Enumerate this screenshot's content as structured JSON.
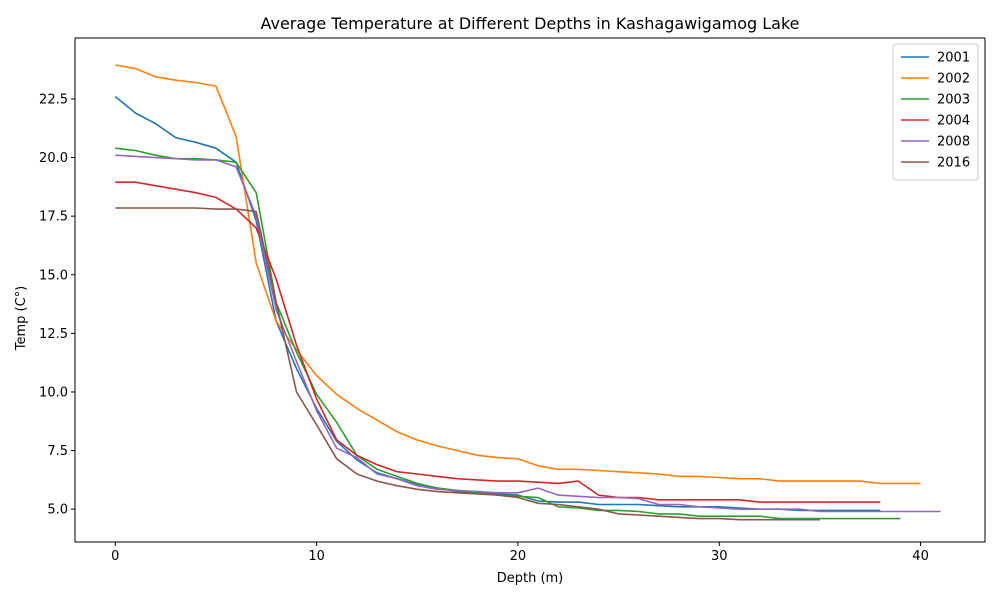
{
  "chart_data": {
    "type": "line",
    "title": "Average Temperature at Different Depths in Kashagawigamog Lake",
    "xlabel": "Depth (m)",
    "ylabel": "Temp (C°)",
    "xlim": [
      -2,
      43.2
    ],
    "ylim": [
      3.6,
      25.1
    ],
    "xticks": [
      0,
      10,
      20,
      30,
      40
    ],
    "xtick_labels": [
      "0",
      "10",
      "20",
      "30",
      "40"
    ],
    "yticks": [
      5.0,
      7.5,
      10.0,
      12.5,
      15.0,
      17.5,
      20.0,
      22.5
    ],
    "ytick_labels": [
      "5.0",
      "7.5",
      "10.0",
      "12.5",
      "15.0",
      "17.5",
      "20.0",
      "22.5"
    ],
    "grid": false,
    "legend": "top-right",
    "series": [
      {
        "name": "2001",
        "color": "#1f77b4",
        "x": [
          0,
          1,
          2,
          3,
          4,
          5,
          6,
          7,
          8,
          9,
          10,
          11,
          12,
          13,
          14,
          15,
          16,
          17,
          18,
          19,
          20,
          21,
          22,
          23,
          24,
          25,
          26,
          27,
          28,
          29,
          30,
          31,
          32,
          33,
          34,
          35,
          36,
          37,
          38
        ],
        "y": [
          22.6,
          21.9,
          21.45,
          20.85,
          20.65,
          20.4,
          19.8,
          17.3,
          13.0,
          11.0,
          9.3,
          7.9,
          7.1,
          6.55,
          6.3,
          6.05,
          5.9,
          5.75,
          5.7,
          5.65,
          5.6,
          5.35,
          5.3,
          5.3,
          5.2,
          5.2,
          5.2,
          5.15,
          5.1,
          5.1,
          5.1,
          5.05,
          5.0,
          5.0,
          4.95,
          4.95,
          4.95,
          4.95,
          4.95
        ]
      },
      {
        "name": "2002",
        "color": "#ff7f0e",
        "x": [
          0,
          1,
          2,
          3,
          4,
          5,
          6,
          7,
          8,
          9,
          10,
          11,
          12,
          13,
          14,
          15,
          16,
          17,
          18,
          19,
          20,
          21,
          22,
          23,
          24,
          25,
          26,
          27,
          28,
          29,
          30,
          31,
          32,
          33,
          34,
          35,
          36,
          37,
          38,
          39,
          40
        ],
        "y": [
          23.95,
          23.8,
          23.45,
          23.3,
          23.2,
          23.05,
          20.9,
          15.5,
          13.0,
          11.8,
          10.7,
          9.9,
          9.3,
          8.8,
          8.3,
          7.95,
          7.7,
          7.5,
          7.3,
          7.2,
          7.15,
          6.85,
          6.7,
          6.7,
          6.65,
          6.6,
          6.55,
          6.5,
          6.4,
          6.4,
          6.35,
          6.3,
          6.3,
          6.2,
          6.2,
          6.2,
          6.2,
          6.2,
          6.1,
          6.1,
          6.1
        ]
      },
      {
        "name": "2003",
        "color": "#2ca02c",
        "x": [
          0,
          1,
          2,
          3,
          4,
          5,
          6,
          7,
          8,
          9,
          10,
          11,
          12,
          13,
          14,
          15,
          16,
          17,
          18,
          19,
          20,
          21,
          22,
          23,
          24,
          25,
          26,
          27,
          28,
          29,
          30,
          31,
          32,
          33,
          34,
          35,
          36,
          37,
          38,
          39
        ],
        "y": [
          20.4,
          20.3,
          20.1,
          19.95,
          19.95,
          19.9,
          19.8,
          18.5,
          13.8,
          11.7,
          9.9,
          8.7,
          7.3,
          6.7,
          6.4,
          6.1,
          5.9,
          5.8,
          5.7,
          5.6,
          5.55,
          5.5,
          5.1,
          5.05,
          4.95,
          4.95,
          4.9,
          4.8,
          4.8,
          4.7,
          4.7,
          4.7,
          4.7,
          4.6,
          4.6,
          4.6,
          4.6,
          4.6,
          4.6,
          4.6
        ]
      },
      {
        "name": "2004",
        "color": "#d62728",
        "x": [
          0,
          1,
          2,
          3,
          4,
          5,
          6,
          7,
          8,
          9,
          10,
          11,
          12,
          13,
          14,
          15,
          16,
          17,
          18,
          19,
          20,
          21,
          22,
          23,
          24,
          25,
          26,
          27,
          28,
          29,
          30,
          31,
          32,
          33,
          34,
          35,
          36,
          37,
          38
        ],
        "y": [
          18.95,
          18.95,
          18.8,
          18.65,
          18.5,
          18.3,
          17.8,
          17.0,
          14.8,
          12.0,
          9.7,
          7.95,
          7.3,
          6.9,
          6.6,
          6.5,
          6.4,
          6.3,
          6.25,
          6.2,
          6.2,
          6.15,
          6.1,
          6.2,
          5.6,
          5.5,
          5.5,
          5.4,
          5.4,
          5.4,
          5.4,
          5.4,
          5.3,
          5.3,
          5.3,
          5.3,
          5.3,
          5.3,
          5.3
        ]
      },
      {
        "name": "2008",
        "color": "#9467bd",
        "x": [
          0,
          1,
          2,
          3,
          4,
          5,
          6,
          7,
          8,
          9,
          10,
          11,
          12,
          13,
          14,
          15,
          16,
          17,
          18,
          19,
          20,
          21,
          22,
          23,
          24,
          25,
          26,
          27,
          28,
          29,
          30,
          31,
          32,
          33,
          34,
          35,
          36,
          37,
          38,
          39,
          40,
          41
        ],
        "y": [
          20.1,
          20.05,
          20.0,
          19.95,
          19.9,
          19.9,
          19.6,
          17.5,
          13.5,
          11.3,
          9.2,
          7.6,
          7.2,
          6.5,
          6.3,
          6.0,
          5.85,
          5.8,
          5.75,
          5.7,
          5.7,
          5.9,
          5.6,
          5.55,
          5.5,
          5.5,
          5.45,
          5.2,
          5.2,
          5.1,
          5.05,
          5.0,
          5.0,
          5.0,
          5.0,
          4.9,
          4.9,
          4.9,
          4.9,
          4.9,
          4.9,
          4.9
        ]
      },
      {
        "name": "2016",
        "color": "#8c564b",
        "x": [
          0,
          1,
          2,
          3,
          4,
          5,
          6,
          7,
          8,
          9,
          10,
          11,
          12,
          13,
          14,
          15,
          16,
          17,
          18,
          19,
          20,
          21,
          22,
          23,
          24,
          25,
          26,
          27,
          28,
          29,
          30,
          31,
          32,
          33,
          34,
          35
        ],
        "y": [
          17.85,
          17.85,
          17.85,
          17.85,
          17.85,
          17.8,
          17.8,
          17.7,
          13.8,
          10.0,
          8.6,
          7.15,
          6.5,
          6.2,
          6.0,
          5.85,
          5.75,
          5.7,
          5.65,
          5.6,
          5.5,
          5.25,
          5.2,
          5.1,
          5.0,
          4.8,
          4.75,
          4.7,
          4.65,
          4.6,
          4.6,
          4.55,
          4.55,
          4.55,
          4.55,
          4.55
        ]
      }
    ]
  }
}
